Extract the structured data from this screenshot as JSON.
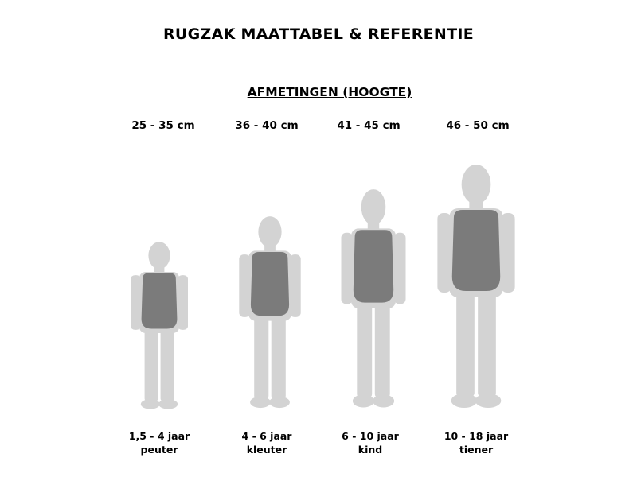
{
  "title": "RUGZAK MAATTABEL & REFERENTIE",
  "subtitle": "AFMETINGEN (HOOGTE)",
  "colors": {
    "silhouette": "#d3d3d3",
    "backpack": "#7b7b7b"
  },
  "columns": [
    {
      "size": "25 - 35 cm",
      "age": "1,5 - 4 jaar",
      "group": "peuter",
      "icon": "child-with-backpack-icon"
    },
    {
      "size": "36 - 40 cm",
      "age": "4 - 6 jaar",
      "group": "kleuter",
      "icon": "child-with-backpack-icon"
    },
    {
      "size": "41 - 45 cm",
      "age": "6 - 10 jaar",
      "group": "kind",
      "icon": "child-with-backpack-icon"
    },
    {
      "size": "46 - 50 cm",
      "age": "10 - 18 jaar",
      "group": "tiener",
      "icon": "teen-with-backpack-icon"
    }
  ]
}
